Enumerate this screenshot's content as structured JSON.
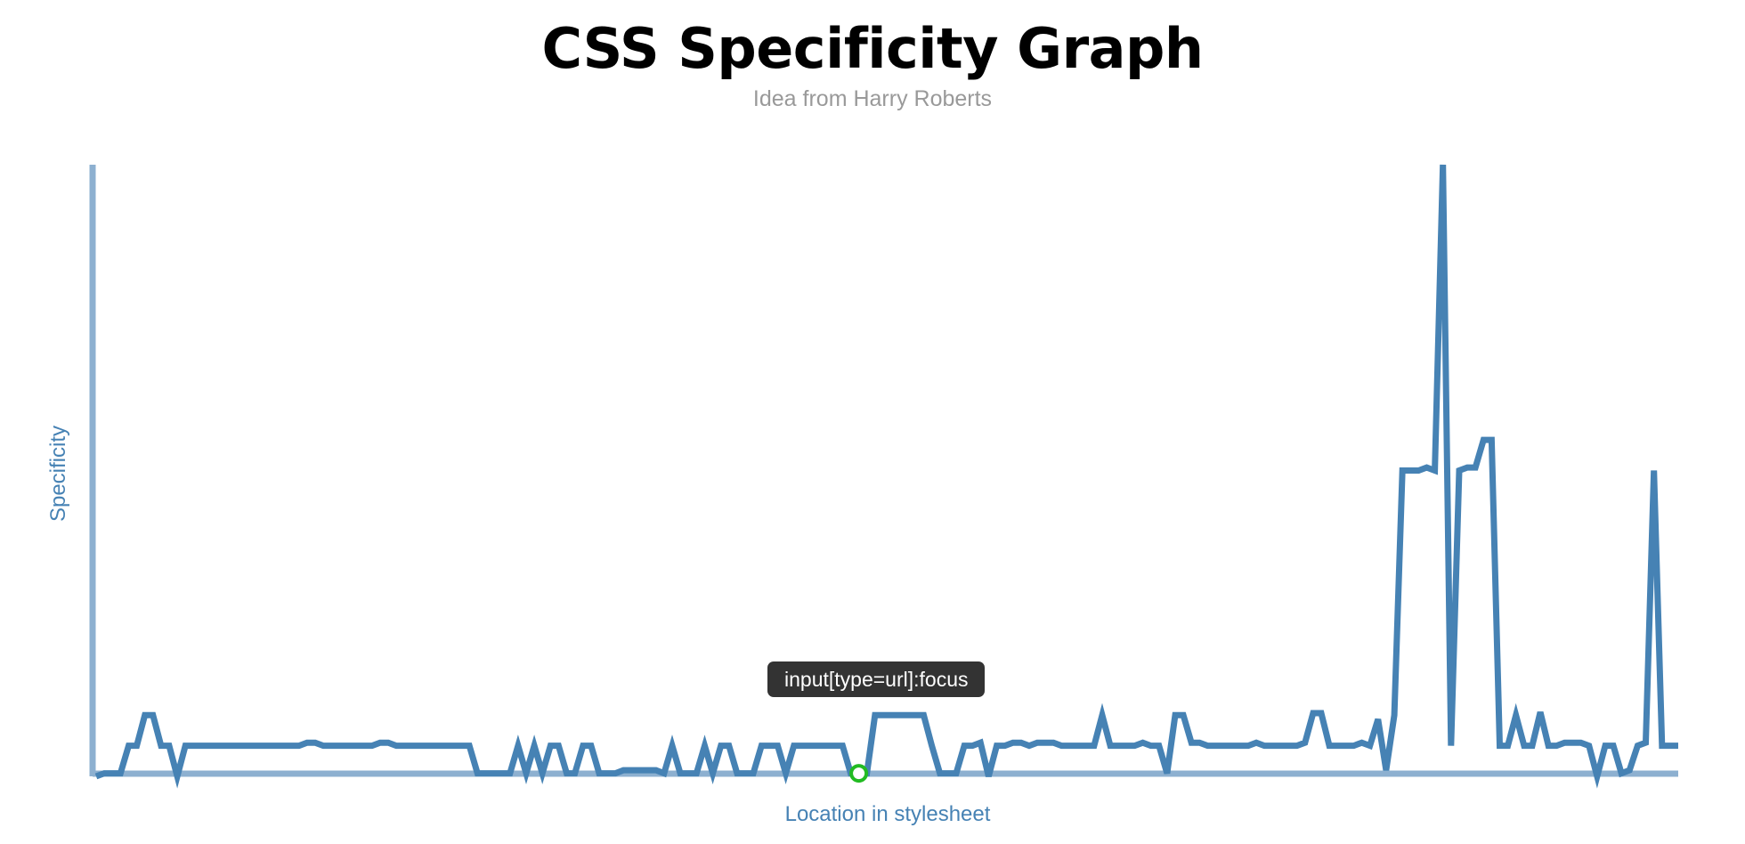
{
  "page": {
    "title": "CSS Specificity Graph",
    "subtitle": "Idea from Harry Roberts"
  },
  "tooltip": {
    "text": "input[type=url]:focus"
  },
  "colors": {
    "line": "#4682b4",
    "axis": "#8db0d0",
    "highlight": "#22bb22",
    "tooltip_bg": "#333333"
  },
  "chart_data": {
    "type": "line",
    "title": "CSS Specificity Graph",
    "subtitle": "Idea from Harry Roberts",
    "xlabel": "Location in stylesheet",
    "ylabel": "Specificity",
    "grid": false,
    "legend": "none",
    "ylim": [
      0,
      60
    ],
    "xlim": [
      0,
      1
    ],
    "highlight_index": 94,
    "series": [
      {
        "values": [
          0,
          0.3,
          0.3,
          0.3,
          3,
          3,
          6,
          6,
          3,
          3,
          0,
          3,
          3,
          3,
          3,
          3,
          3,
          3,
          3,
          3,
          3,
          3,
          3,
          3,
          3,
          3,
          3.3,
          3.3,
          3,
          3,
          3,
          3,
          3,
          3,
          3,
          3.3,
          3.3,
          3,
          3,
          3,
          3,
          3,
          3,
          3,
          3,
          3,
          3,
          0.3,
          0.3,
          0.3,
          0.3,
          0.3,
          3,
          0.3,
          3,
          0.3,
          3,
          3,
          0.3,
          0.3,
          3,
          3,
          0.3,
          0.3,
          0.3,
          0.6,
          0.6,
          0.6,
          0.6,
          0.6,
          0.3,
          3,
          0.3,
          0.3,
          0.3,
          3,
          0.3,
          3,
          3,
          0.3,
          0.3,
          0.3,
          3,
          3,
          3,
          0.3,
          3,
          3,
          3,
          3,
          3,
          3,
          3,
          0.3,
          0.3,
          0.3,
          6,
          6,
          6,
          6,
          6,
          6,
          6,
          3,
          0.3,
          0.3,
          0.3,
          3,
          3,
          3.3,
          0,
          3,
          3,
          3.3,
          3.3,
          3,
          3.3,
          3.3,
          3.3,
          3,
          3,
          3,
          3,
          3,
          6,
          3,
          3,
          3,
          3,
          3.3,
          3,
          3,
          0.3,
          6,
          6,
          3.3,
          3.3,
          3,
          3,
          3,
          3,
          3,
          3,
          3.3,
          3,
          3,
          3,
          3,
          3,
          3.3,
          6.2,
          6.2,
          3,
          3,
          3,
          3,
          3.3,
          3,
          5.6,
          0.6,
          6,
          30,
          30,
          30,
          30.3,
          30,
          60,
          3,
          30,
          30.3,
          30.3,
          33,
          33,
          3,
          3,
          6,
          3,
          3,
          6.3,
          3,
          3,
          3.3,
          3.3,
          3.3,
          3,
          0,
          3,
          3,
          0.3,
          0.6,
          3,
          3.3,
          30,
          3,
          3,
          3
        ]
      }
    ]
  }
}
